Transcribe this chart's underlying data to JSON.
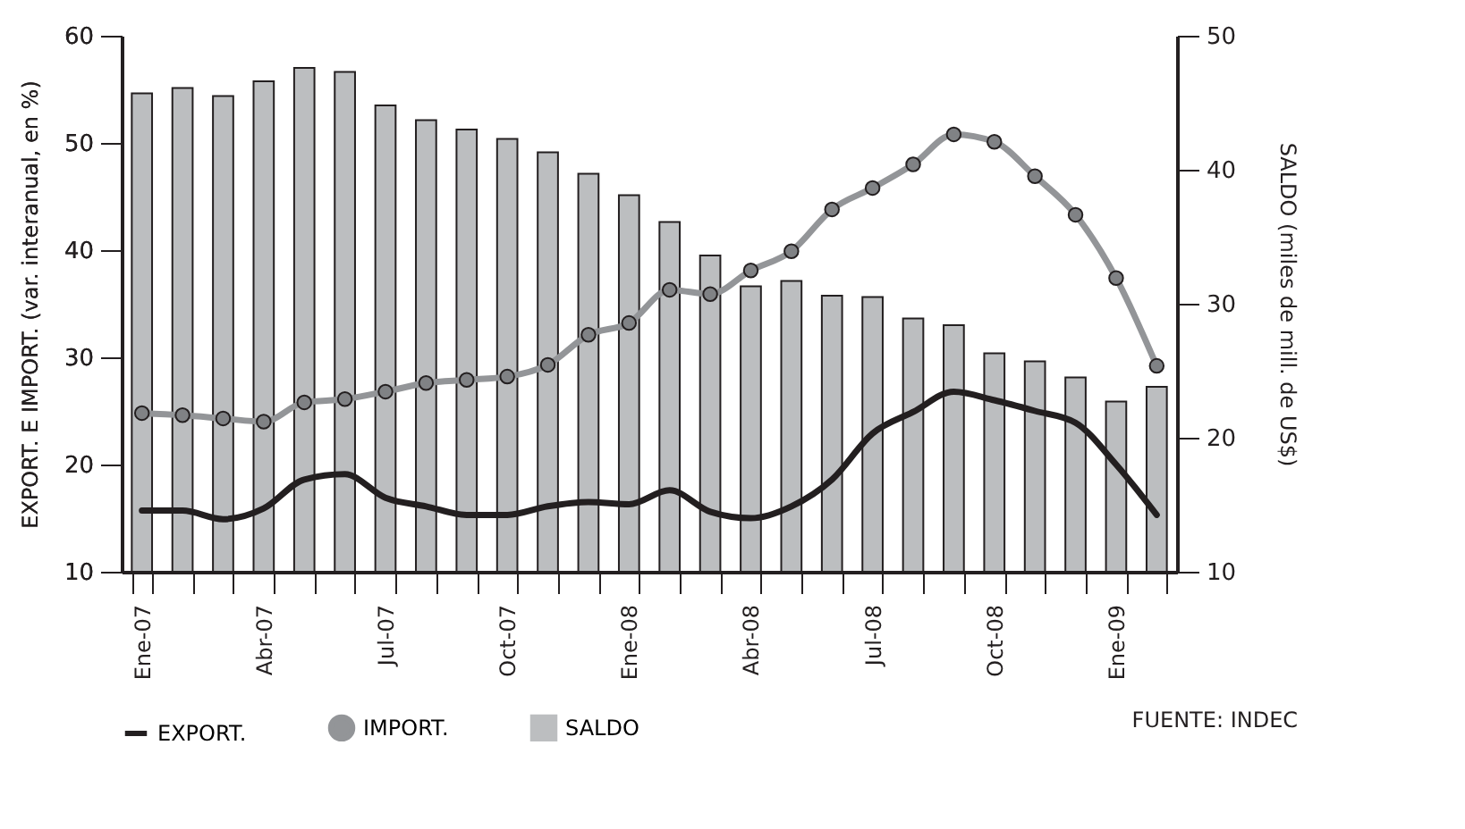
{
  "chart_data": {
    "type": "line",
    "categories": [
      "Ene-07",
      null,
      null,
      "Abr-07",
      null,
      null,
      "Jul-07",
      null,
      null,
      "Oct-07",
      null,
      null,
      "Ene-08",
      null,
      null,
      "Abr-08",
      null,
      null,
      "Jul-08",
      null,
      null,
      "Oct-08",
      null,
      null,
      "Ene-09",
      null
    ],
    "ylabel": "EXPORT. E IMPORT. (var. interanual, en %)",
    "y2label": "SALDO  (miles de mill. de US$)",
    "ylim": [
      10,
      60
    ],
    "yticks": [
      10,
      20,
      30,
      40,
      50,
      60
    ],
    "y2lim": [
      10,
      50
    ],
    "y2ticks": [
      10,
      20,
      30,
      40,
      50
    ],
    "grid": false,
    "legend": "bottom",
    "annotations": [
      "FUENTE: INDEC"
    ],
    "series": [
      {
        "name": "EXPORT.",
        "color": "#231f20",
        "values": [
          15.7,
          15.7,
          14.9,
          15.9,
          18.6,
          19.1,
          16.9,
          16.1,
          15.3,
          15.3,
          16.1,
          16.5,
          16.3,
          17.6,
          15.6,
          15.0,
          16.1,
          18.6,
          22.9,
          24.9,
          26.8,
          26.0,
          25.0,
          23.9,
          20.0,
          15.3
        ]
      },
      {
        "name": "IMPORT.",
        "color": "#939598",
        "marker": "circle",
        "values": [
          24.8,
          24.6,
          24.3,
          24.0,
          25.8,
          26.1,
          26.8,
          27.6,
          27.9,
          28.2,
          29.3,
          32.1,
          33.2,
          36.3,
          35.9,
          38.1,
          39.9,
          43.8,
          45.8,
          48.0,
          50.8,
          50.1,
          46.9,
          43.3,
          37.4,
          29.2
        ]
      },
      {
        "name": "SALDO",
        "type": "bar",
        "axis": "y2",
        "color": "#bcbec0",
        "values": [
          45.7,
          46.1,
          45.5,
          46.6,
          47.6,
          47.3,
          44.8,
          43.7,
          43.0,
          42.3,
          41.3,
          39.7,
          38.1,
          36.1,
          33.6,
          31.3,
          31.7,
          30.6,
          30.5,
          28.9,
          28.4,
          26.3,
          25.7,
          24.5,
          22.7,
          23.8
        ]
      }
    ]
  }
}
